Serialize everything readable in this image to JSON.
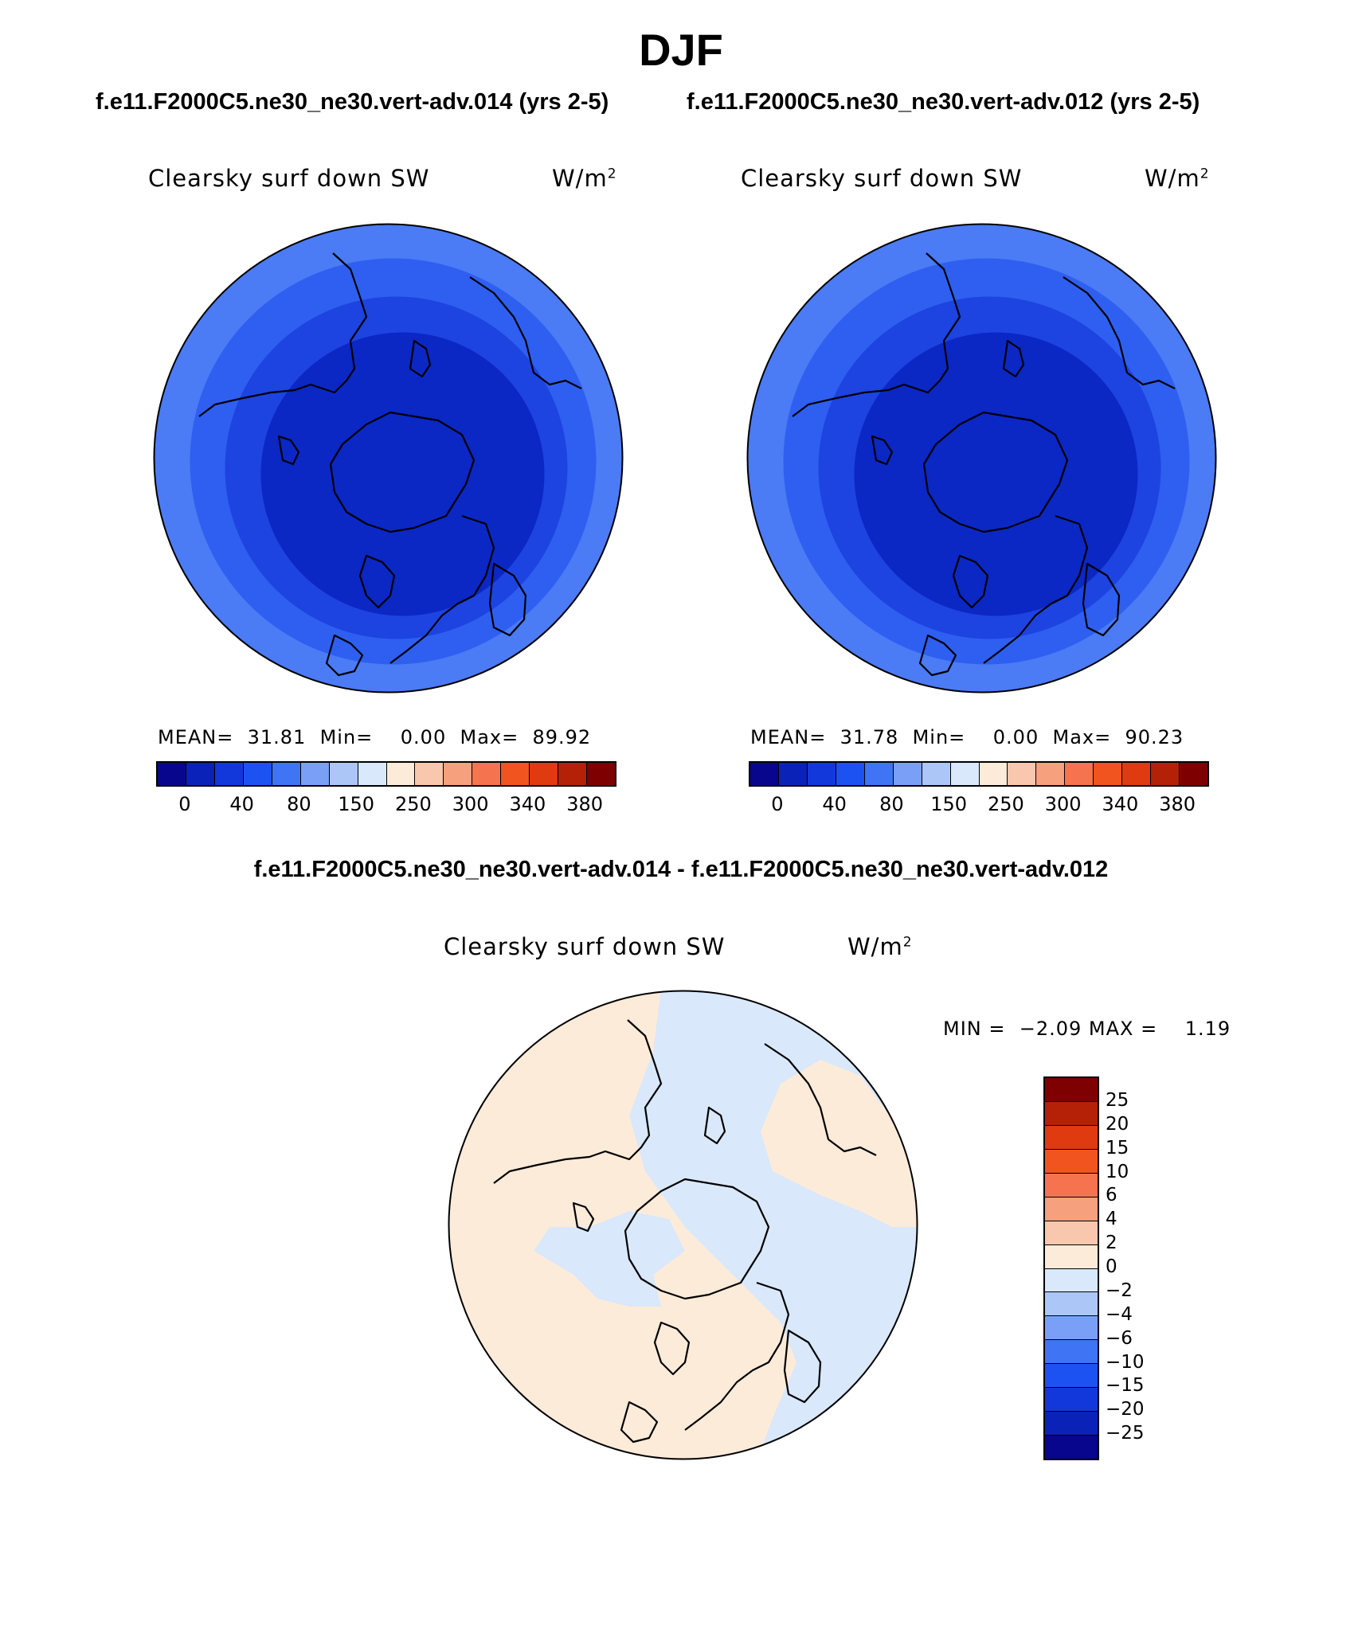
{
  "title": "DJF",
  "case_titles": {
    "left": "f.e11.F2000C5.ne30_ne30.vert-adv.014 (yrs 2-5)",
    "right": "f.e11.F2000C5.ne30_ne30.vert-adv.012 (yrs 2-5)"
  },
  "panels": [
    {
      "label": "Clearsky surf down SW",
      "units": "W/m",
      "units_sup": "2",
      "stats": "MEAN=  31.81  Min=    0.00  Max=  89.92",
      "ring_colors": [
        "#4b7bf5",
        "#2e5ff0",
        "#1d43e0",
        "#0b27c4"
      ]
    },
    {
      "label": "Clearsky surf down SW",
      "units": "W/m",
      "units_sup": "2",
      "stats": "MEAN=  31.78  Min=    0.00  Max=  90.23",
      "ring_colors": [
        "#4b7bf5",
        "#2e5ff0",
        "#1d43e0",
        "#0b27c4"
      ]
    }
  ],
  "colorbar": {
    "colors": [
      "#08068c",
      "#0a22b8",
      "#1238dc",
      "#1d52f2",
      "#3f74f4",
      "#7a9ff6",
      "#adc6f8",
      "#d9e8fb",
      "#fdebd9",
      "#f8c7ae",
      "#f6a07e",
      "#f5744f",
      "#f2541f",
      "#df3a10",
      "#b42107",
      "#7f0000"
    ],
    "labels": [
      "0",
      "40",
      "80",
      "150",
      "250",
      "300",
      "340",
      "380"
    ]
  },
  "diff": {
    "title": "f.e11.F2000C5.ne30_ne30.vert-adv.014 - f.e11.F2000C5.ne30_ne30.vert-adv.012",
    "label": "Clearsky surf down SW",
    "units": "W/m",
    "units_sup": "2",
    "minmax": "MIN =  −2.09 MAX =    1.19",
    "positive_color": "#fdebd9",
    "negative_color": "#d9e8fb",
    "colorbar_colors": [
      "#7f0000",
      "#b42107",
      "#df3a10",
      "#f2541f",
      "#f5744f",
      "#f6a07e",
      "#f8c7ae",
      "#fdebd9",
      "#d9e8fb",
      "#adc6f8",
      "#7a9ff6",
      "#3f74f4",
      "#1d52f2",
      "#1238dc",
      "#0a22b8",
      "#08068c"
    ],
    "colorbar_labels": [
      "25",
      "20",
      "15",
      "10",
      "6",
      "4",
      "2",
      "0",
      "−2",
      "−4",
      "−6",
      "−10",
      "−15",
      "−20",
      "−25"
    ]
  }
}
